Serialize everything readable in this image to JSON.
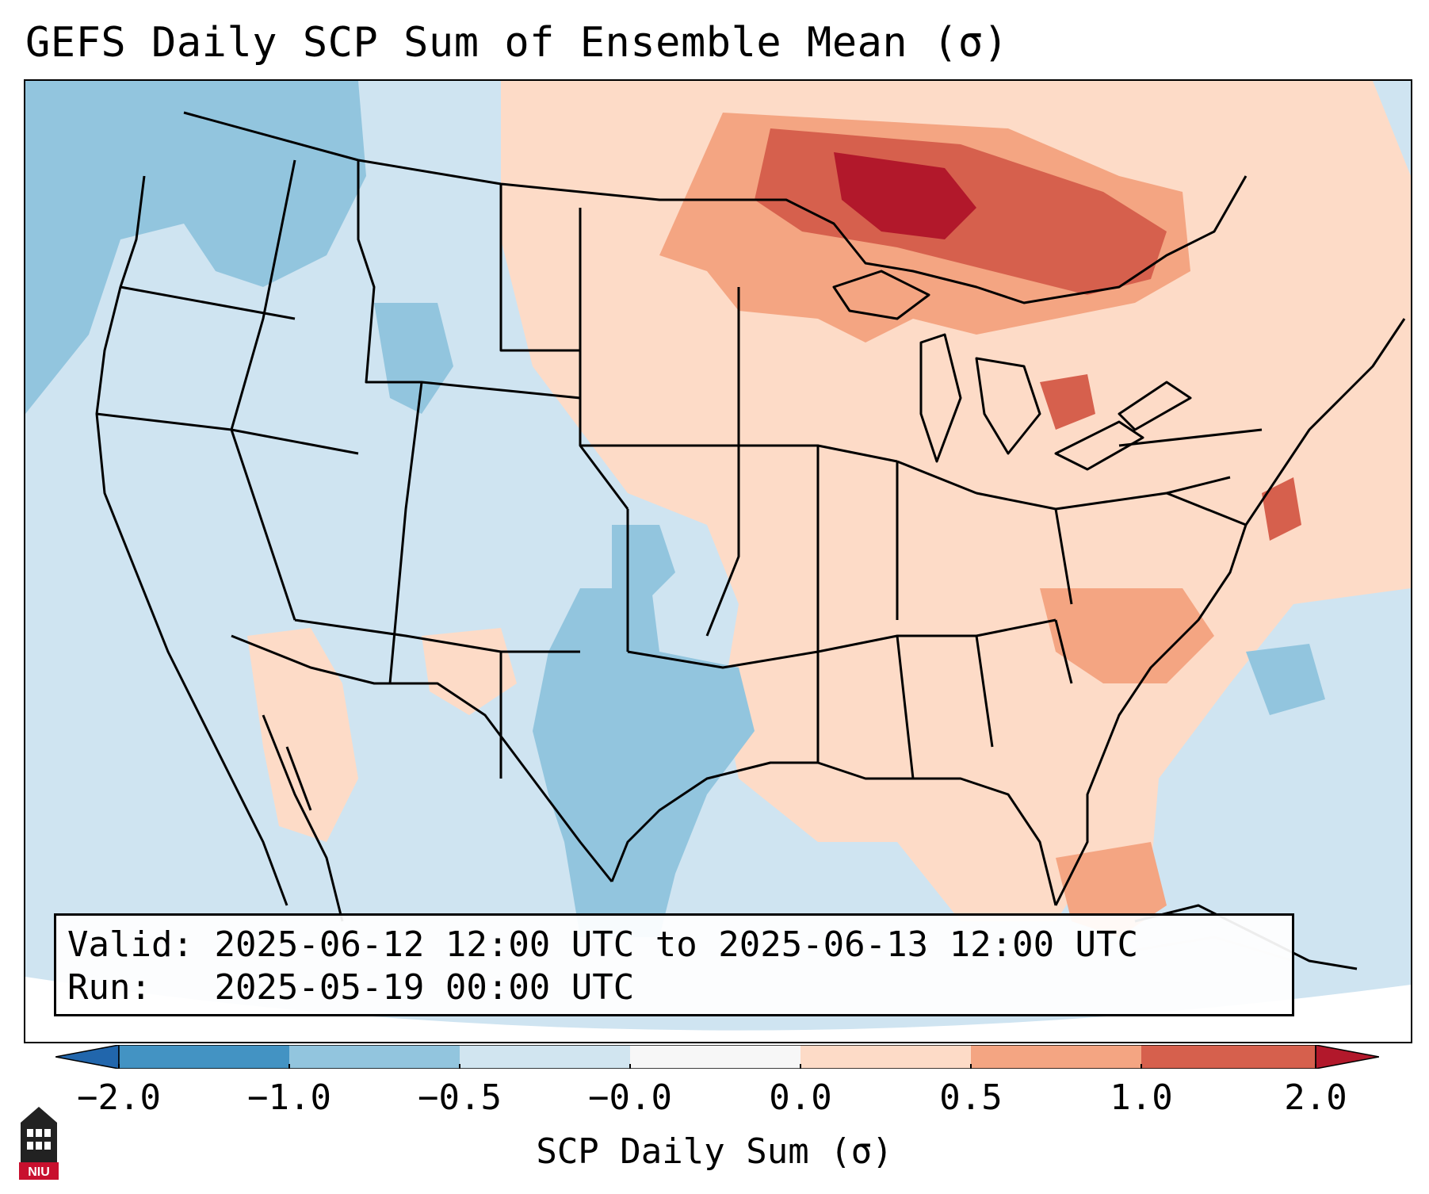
{
  "title": "GEFS Daily SCP Sum of Ensemble Mean (σ)",
  "info": {
    "valid_label": "Valid:",
    "valid_value": "2025-06-12 12:00 UTC to 2025-06-13 12:00 UTC",
    "run_label": "Run:",
    "run_value": "2025-05-19 00:00 UTC"
  },
  "colorbar": {
    "label": "SCP Daily Sum (σ)",
    "ticks": [
      "−2.0",
      "−1.0",
      "−0.5",
      "−0.0",
      "0.0",
      "0.5",
      "1.0",
      "2.0"
    ],
    "bin_colors": [
      "#4393c3",
      "#92c5de",
      "#d1e5f0",
      "#f7f7f7",
      "#fddbc7",
      "#f4a582",
      "#d6604d"
    ],
    "under_color": "#2166ac",
    "over_color": "#b2182b"
  },
  "logo": {
    "text": "NIU",
    "color": "#c8102e"
  },
  "map": {
    "ocean_color": "#cfe4f1",
    "region_description": "Continental United States, Mexico, Gulf of Mexico, southern Canada"
  }
}
